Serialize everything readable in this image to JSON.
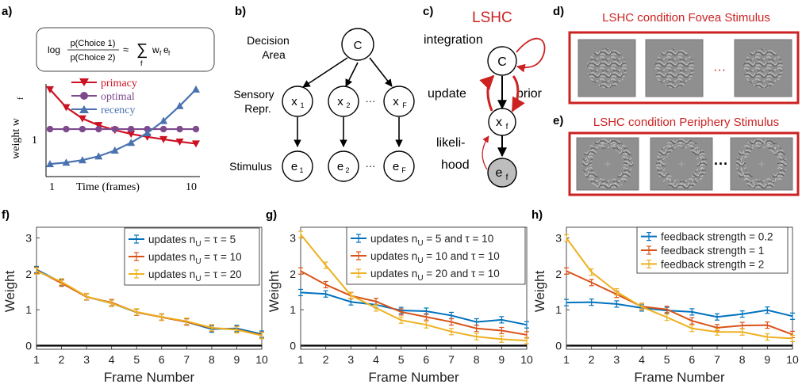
{
  "colors": {
    "blue": "#0072BD",
    "red": "#D95319",
    "yellow": "#EDB120",
    "a_red": "#CC1122",
    "a_purple": "#7E4A8E",
    "a_blue": "#4A72B0",
    "accent_red": "#CC2222",
    "gray": "#888888"
  },
  "panel_a": {
    "letter": "a)",
    "formula_lhs_num": "p(Choice 1)",
    "formula_lhs_den": "p(Choice 2)",
    "formula_log": "log",
    "formula_approx": "≈",
    "formula_sum": "∑",
    "formula_sum_sub": "f",
    "formula_term": "w",
    "formula_term_sub": "f",
    "formula_e": "e",
    "formula_e_sub": "f",
    "legend": [
      "primacy",
      "optimal",
      "recency"
    ],
    "ylabel": "weight w",
    "ylabel_sub": "f",
    "xlabel": "Time (frames)",
    "ytick": "1",
    "xtick_left": "1",
    "xtick_right": "10",
    "chart_data": {
      "type": "line",
      "x": [
        1,
        2,
        3,
        4,
        5,
        6,
        7,
        8,
        9,
        10
      ],
      "series": [
        {
          "name": "primacy",
          "values": [
            1.82,
            1.45,
            1.22,
            1.08,
            0.98,
            0.9,
            0.84,
            0.79,
            0.74,
            0.7
          ]
        },
        {
          "name": "optimal",
          "values": [
            1,
            1,
            1,
            1,
            1,
            1,
            1,
            1,
            1,
            1
          ]
        },
        {
          "name": "recency",
          "values": [
            0.28,
            0.31,
            0.36,
            0.44,
            0.56,
            0.72,
            0.92,
            1.17,
            1.48,
            1.82
          ]
        }
      ]
    }
  },
  "panel_b": {
    "letter": "b)",
    "row_labels": [
      "Decision",
      "Area",
      "Sensory",
      "Repr.",
      "Stimulus"
    ],
    "top_node": "C",
    "mid_nodes": [
      "x",
      "x",
      "x"
    ],
    "mid_subs": [
      "1",
      "2",
      "F"
    ],
    "bot_nodes": [
      "e",
      "e",
      "e"
    ],
    "bot_subs": [
      "1",
      "2",
      "F"
    ],
    "dots": "···"
  },
  "panel_c": {
    "letter": "c)",
    "title": "LSHC",
    "integration": "integration",
    "update": "update",
    "prior": "prior",
    "likeli": "likeli-",
    "hood": "hood",
    "node_c": "C",
    "node_x": "x",
    "node_x_sub": "f",
    "node_e": "e",
    "node_e_sub": "f"
  },
  "panel_d": {
    "letter": "d)",
    "title": "LSHC condition Fovea Stimulus",
    "dots": "···"
  },
  "panel_e": {
    "letter": "e)",
    "title": "LSHC condition Periphery Stimulus",
    "dots": "···"
  },
  "chart_data": [
    {
      "panel": "f)",
      "type": "line",
      "xlabel": "Frame Number",
      "ylabel": "Weight",
      "x": [
        1,
        2,
        3,
        4,
        5,
        6,
        7,
        8,
        9,
        10
      ],
      "ylim": [
        -0.1,
        3.3
      ],
      "yticks": [
        0,
        1,
        2,
        3
      ],
      "series": [
        {
          "name": "updates n",
          "name_sub": "U",
          "name_suffix": " = τ = 5",
          "values": [
            2.12,
            1.76,
            1.36,
            1.18,
            0.93,
            0.8,
            0.66,
            0.46,
            0.48,
            0.32
          ]
        },
        {
          "name": "updates n",
          "name_sub": "U",
          "name_suffix": " = τ = 10",
          "values": [
            2.1,
            1.74,
            1.36,
            1.2,
            0.93,
            0.79,
            0.66,
            0.49,
            0.45,
            0.29
          ]
        },
        {
          "name": "updates n",
          "name_sub": "U",
          "name_suffix": " = τ = 20",
          "values": [
            2.08,
            1.78,
            1.37,
            1.18,
            0.94,
            0.8,
            0.68,
            0.5,
            0.44,
            0.28
          ]
        }
      ]
    },
    {
      "panel": "g)",
      "type": "line",
      "xlabel": "Frame Number",
      "ylabel": "Weight",
      "x": [
        1,
        2,
        3,
        4,
        5,
        6,
        7,
        8,
        9,
        10
      ],
      "ylim": [
        -0.1,
        3.3
      ],
      "yticks": [
        0,
        1,
        2,
        3
      ],
      "series": [
        {
          "name": "updates n",
          "name_sub": "U",
          "name_suffix": " = 5 and τ = 10",
          "values": [
            1.48,
            1.44,
            1.22,
            1.14,
            0.98,
            0.96,
            0.84,
            0.66,
            0.72,
            0.58
          ]
        },
        {
          "name": "updates n",
          "name_sub": "U",
          "name_suffix": " = 10 and τ = 10",
          "values": [
            2.08,
            1.7,
            1.39,
            1.23,
            0.94,
            0.8,
            0.66,
            0.48,
            0.42,
            0.3
          ]
        },
        {
          "name": "updates n",
          "name_sub": "U",
          "name_suffix": " = 20 and τ = 10",
          "values": [
            3.1,
            2.24,
            1.4,
            1.05,
            0.71,
            0.58,
            0.39,
            0.25,
            0.18,
            0.14
          ]
        }
      ]
    },
    {
      "panel": "h)",
      "type": "line",
      "xlabel": "Frame Number",
      "ylabel": "Weight",
      "x": [
        1,
        2,
        3,
        4,
        5,
        6,
        7,
        8,
        9,
        10
      ],
      "ylim": [
        -0.1,
        3.3
      ],
      "yticks": [
        0,
        1,
        2,
        3
      ],
      "series": [
        {
          "name": "feedback strength = 0.2",
          "values": [
            1.2,
            1.21,
            1.16,
            1.05,
            0.98,
            0.94,
            0.8,
            0.88,
            0.99,
            0.82
          ]
        },
        {
          "name": "feedback strength = 1",
          "values": [
            2.08,
            1.76,
            1.43,
            1.09,
            1.01,
            0.69,
            0.5,
            0.56,
            0.57,
            0.31
          ]
        },
        {
          "name": "feedback strength = 2",
          "values": [
            3.0,
            2.05,
            1.5,
            1.08,
            0.79,
            0.48,
            0.38,
            0.38,
            0.24,
            0.2
          ]
        }
      ]
    }
  ]
}
